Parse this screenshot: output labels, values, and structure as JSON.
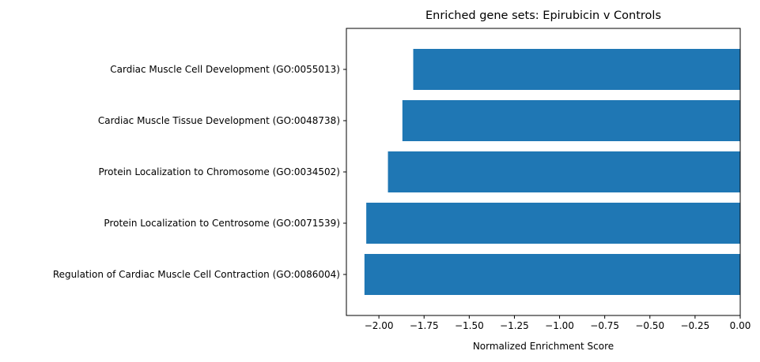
{
  "chart_data": {
    "type": "bar",
    "orientation": "horizontal",
    "title": "Enriched gene sets: Epirubicin v Controls",
    "xlabel": "Normalized Enrichment Score",
    "ylabel": "",
    "categories": [
      "Regulation of Cardiac Muscle Cell Contraction (GO:0086004)",
      "Protein Localization to Centrosome (GO:0071539)",
      "Protein Localization to Chromosome (GO:0034502)",
      "Cardiac Muscle Tissue Development (GO:0048738)",
      "Cardiac Muscle Cell Development (GO:0055013)"
    ],
    "values": [
      -2.08,
      -2.07,
      -1.95,
      -1.87,
      -1.81
    ],
    "xlim": [
      -2.18,
      0.0
    ],
    "xticks": [
      -2.0,
      -1.75,
      -1.5,
      -1.25,
      -1.0,
      -0.75,
      -0.5,
      -0.25,
      0.0
    ],
    "xtick_labels": [
      "−2.00",
      "−1.75",
      "−1.50",
      "−1.25",
      "−1.00",
      "−0.75",
      "−0.50",
      "−0.25",
      "0.00"
    ],
    "bar_color": "#1f77b4",
    "grid": false,
    "legend": false
  }
}
